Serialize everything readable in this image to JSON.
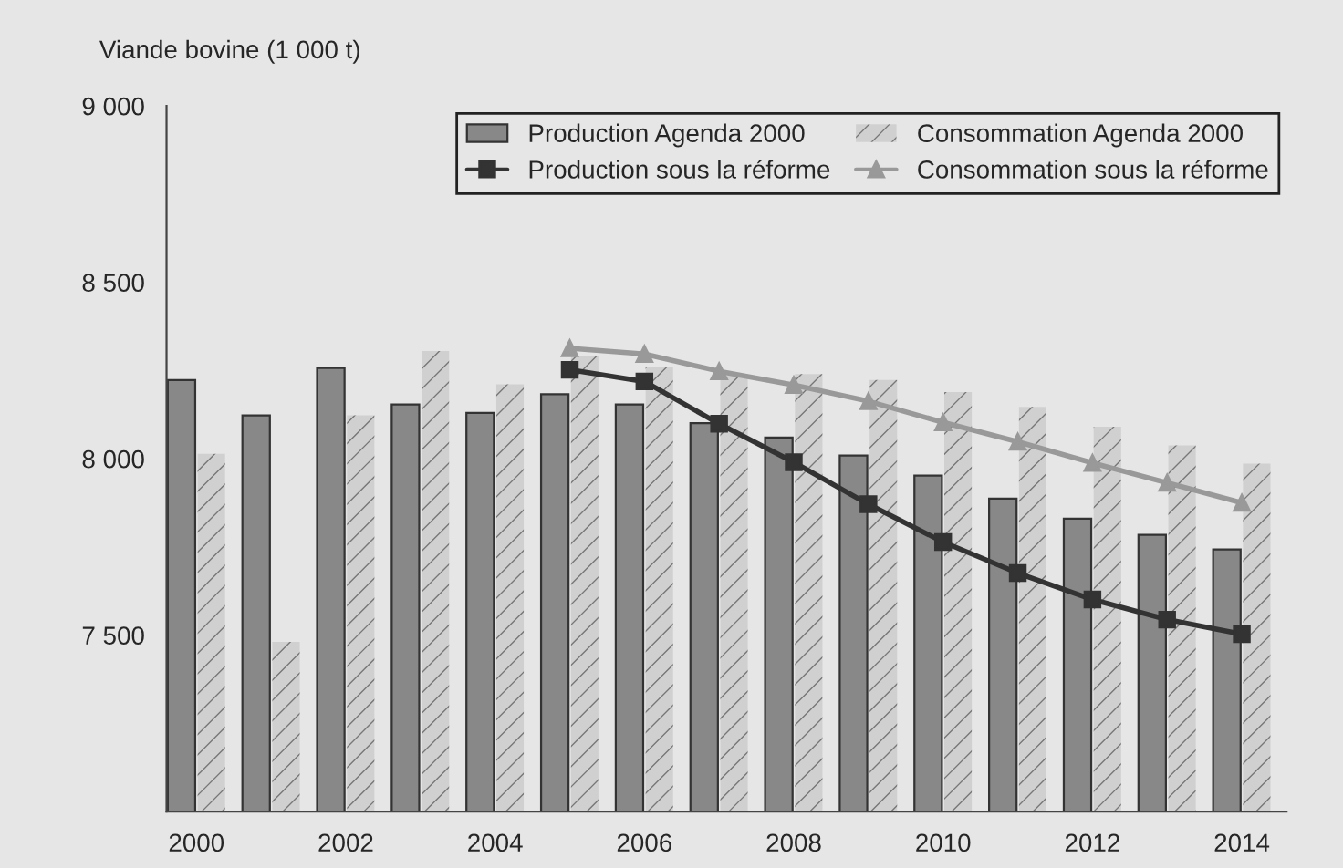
{
  "chart_data": {
    "type": "bar",
    "ylabel": "Viande bovine (1 000 t)",
    "x": [
      2000,
      2001,
      2002,
      2003,
      2004,
      2005,
      2006,
      2007,
      2008,
      2009,
      2010,
      2011,
      2012,
      2013,
      2014
    ],
    "series": [
      {
        "name": "Production Agenda 2000",
        "color": "#888888",
        "values": [
          8223,
          8123,
          8257,
          8154,
          8130,
          8183,
          8154,
          8101,
          8060,
          8009,
          7952,
          7887,
          7830,
          7784,
          7743
        ]
      },
      {
        "name": "Consommation Agenda 2000",
        "color": "#d0d0d0",
        "values": [
          8014,
          7481,
          8123,
          8305,
          8211,
          8291,
          8260,
          8240,
          8240,
          8223,
          8189,
          8147,
          8091,
          8038,
          7986
        ]
      },
      {
        "name": "Production sous la réforme",
        "type": "line",
        "marker": "square",
        "color": "#333333",
        "x": [
          2005,
          2006,
          2007,
          2008,
          2009,
          2010,
          2011,
          2012,
          2013,
          2014
        ],
        "values": [
          8252,
          8219,
          8099,
          7990,
          7871,
          7764,
          7676,
          7601,
          7544,
          7503
        ]
      },
      {
        "name": "Consommation sous la réforme",
        "type": "line",
        "marker": "triangle",
        "color": "#999999",
        "x": [
          2005,
          2006,
          2007,
          2008,
          2009,
          2010,
          2011,
          2012,
          2013,
          2014
        ],
        "values": [
          8313,
          8297,
          8248,
          8209,
          8163,
          8103,
          8048,
          7988,
          7932,
          7875
        ]
      }
    ],
    "xlim": [
      1999.6,
      2014.6
    ],
    "xticks": [
      2000,
      2002,
      2004,
      2006,
      2008,
      2010,
      2012,
      2014
    ],
    "ylim": [
      7000,
      9000
    ],
    "yticks": [
      {
        "value": 7500,
        "label": "7 500"
      },
      {
        "value": 8000,
        "label": "8 000"
      },
      {
        "value": 8500,
        "label": "8 500"
      },
      {
        "value": 9000,
        "label": "9 000"
      }
    ],
    "grid": false,
    "legend": "top right",
    "line_style": "solid"
  }
}
